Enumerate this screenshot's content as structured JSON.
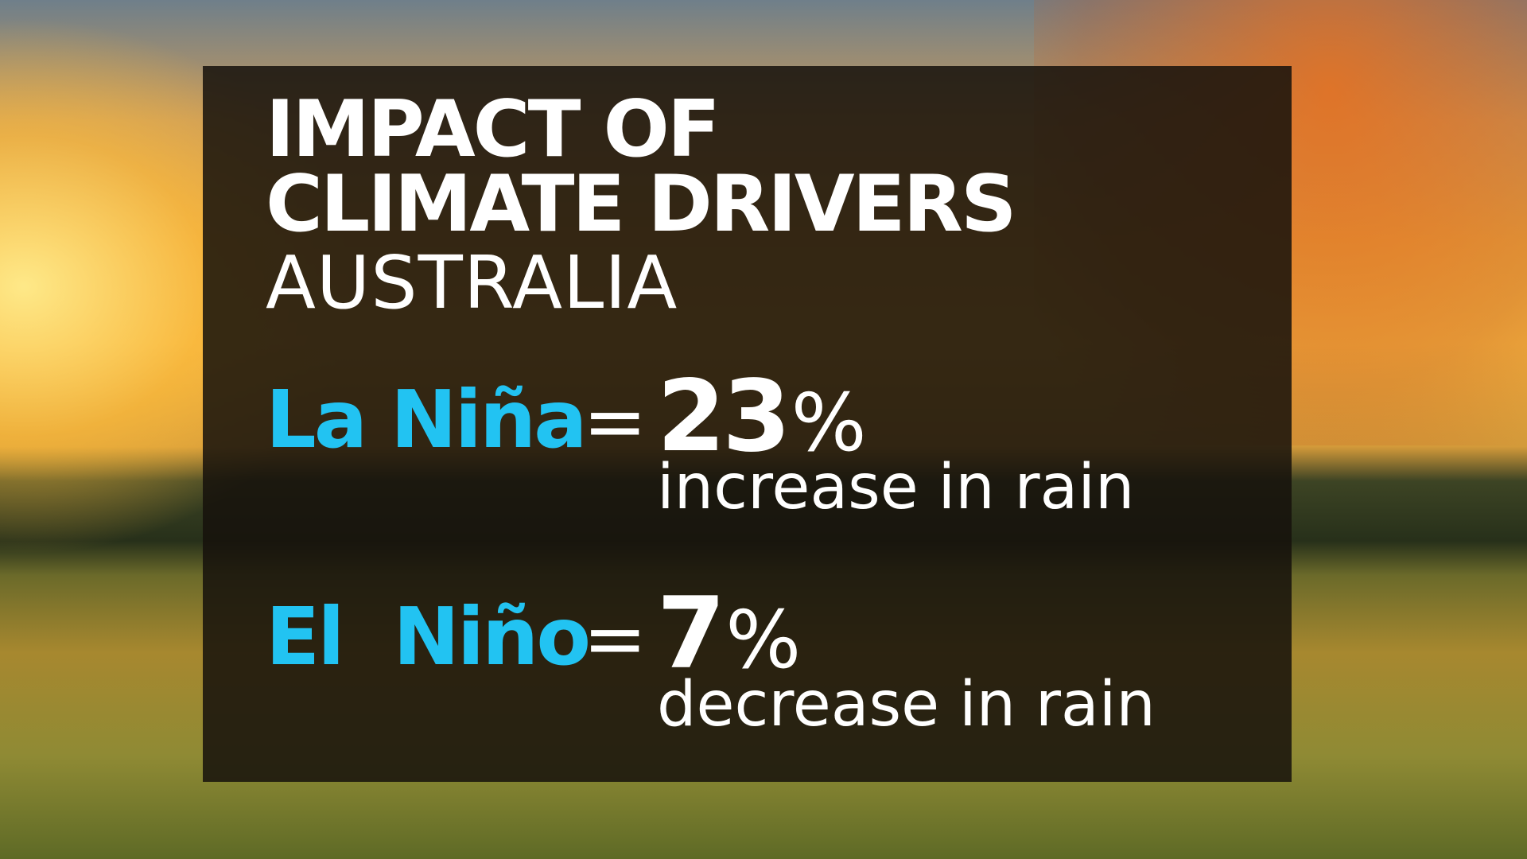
{
  "header": {
    "title_lines": [
      "IMPACT OF",
      "CLIMATE DRIVERS"
    ],
    "subtitle": "AUSTRALIA"
  },
  "items": [
    {
      "name": "La Niña",
      "equals": "=",
      "number": 23,
      "unit": "%",
      "description": "increase in rain"
    },
    {
      "name": "El  Niño",
      "equals": "=",
      "number": 7,
      "unit": "%",
      "description": "decrease in rain"
    }
  ]
}
